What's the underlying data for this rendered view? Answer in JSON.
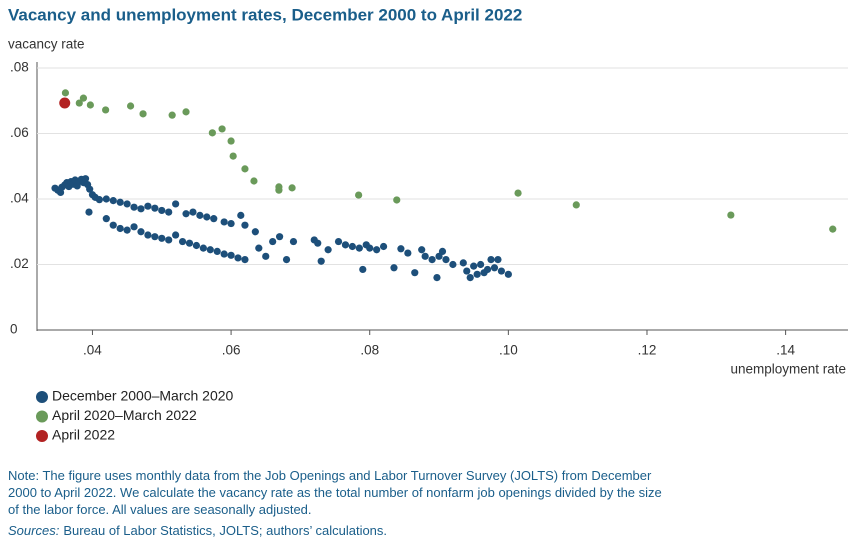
{
  "chart_data": {
    "type": "scatter",
    "title": "Vacancy and unemployment rates, December 2000 to April 2022",
    "y_label": "vacancy rate",
    "x_label": "unemployment rate",
    "xlim": [
      0.032,
      0.149
    ],
    "ylim": [
      0,
      0.08
    ],
    "xticks": [
      {
        "value": 0.04,
        "label": ".04"
      },
      {
        "value": 0.06,
        "label": ".06"
      },
      {
        "value": 0.08,
        "label": ".08"
      },
      {
        "value": 0.1,
        "label": ".10"
      },
      {
        "value": 0.12,
        "label": ".12"
      },
      {
        "value": 0.14,
        "label": ".14"
      }
    ],
    "yticks": [
      0,
      {
        "value": 0.02,
        "label": ".02"
      },
      {
        "value": 0.04,
        "label": ".04"
      },
      {
        "value": 0.06,
        "label": ".06"
      },
      {
        "value": 0.08,
        "label": ".08"
      }
    ],
    "grid": true,
    "series": [
      {
        "name": "December 2000–March 2020",
        "color": "#1d4f7a",
        "x": [
          0.0346,
          0.035,
          0.0354,
          0.0356,
          0.036,
          0.0363,
          0.0366,
          0.0369,
          0.0372,
          0.0375,
          0.0378,
          0.0381,
          0.0384,
          0.0387,
          0.039,
          0.0393,
          0.0396,
          0.04,
          0.0404,
          0.041,
          0.0395,
          0.042,
          0.043,
          0.044,
          0.045,
          0.046,
          0.047,
          0.048,
          0.049,
          0.05,
          0.051,
          0.052,
          0.0535,
          0.0545,
          0.0555,
          0.0565,
          0.0575,
          0.059,
          0.06,
          0.0614,
          0.062,
          0.0635,
          0.042,
          0.043,
          0.044,
          0.045,
          0.046,
          0.047,
          0.048,
          0.049,
          0.05,
          0.051,
          0.052,
          0.053,
          0.054,
          0.055,
          0.056,
          0.057,
          0.058,
          0.059,
          0.06,
          0.061,
          0.062,
          0.064,
          0.065,
          0.066,
          0.067,
          0.068,
          0.069,
          0.072,
          0.0725,
          0.073,
          0.074,
          0.0755,
          0.0765,
          0.0775,
          0.0785,
          0.0795,
          0.08,
          0.081,
          0.082,
          0.0835,
          0.079,
          0.0845,
          0.0855,
          0.0865,
          0.0875,
          0.088,
          0.089,
          0.0897,
          0.09,
          0.0905,
          0.091,
          0.092,
          0.0935,
          0.094,
          0.0945,
          0.095,
          0.0955,
          0.096,
          0.0965,
          0.097,
          0.0975,
          0.098,
          0.0985,
          0.099,
          0.1
        ],
        "values": [
          0.0433,
          0.0427,
          0.042,
          0.0436,
          0.0443,
          0.045,
          0.0438,
          0.0453,
          0.0445,
          0.0458,
          0.044,
          0.0455,
          0.046,
          0.045,
          0.0462,
          0.0444,
          0.043,
          0.0413,
          0.0405,
          0.0398,
          0.036,
          0.04,
          0.0395,
          0.039,
          0.0385,
          0.0375,
          0.037,
          0.0378,
          0.0372,
          0.0365,
          0.036,
          0.0385,
          0.0355,
          0.036,
          0.035,
          0.0345,
          0.034,
          0.033,
          0.0325,
          0.035,
          0.032,
          0.03,
          0.034,
          0.032,
          0.031,
          0.0305,
          0.0315,
          0.03,
          0.029,
          0.0285,
          0.028,
          0.0275,
          0.029,
          0.027,
          0.0265,
          0.0258,
          0.025,
          0.0245,
          0.024,
          0.0232,
          0.0228,
          0.022,
          0.0215,
          0.025,
          0.0225,
          0.027,
          0.0285,
          0.0215,
          0.027,
          0.0275,
          0.0265,
          0.021,
          0.0245,
          0.027,
          0.026,
          0.0255,
          0.025,
          0.026,
          0.025,
          0.0245,
          0.0255,
          0.019,
          0.0185,
          0.0248,
          0.0235,
          0.0175,
          0.0245,
          0.0225,
          0.0215,
          0.016,
          0.0225,
          0.024,
          0.0215,
          0.02,
          0.0205,
          0.018,
          0.016,
          0.0195,
          0.017,
          0.02,
          0.0175,
          0.0185,
          0.0215,
          0.019,
          0.0215,
          0.018,
          0.017
        ]
      },
      {
        "name": "April 2020–March 2022",
        "color": "#6a9a5a",
        "x": [
          0.0361,
          0.0381,
          0.0387,
          0.0397,
          0.0419,
          0.0455,
          0.0473,
          0.0515,
          0.0535,
          0.0573,
          0.0587,
          0.06,
          0.0603,
          0.062,
          0.0633,
          0.0669,
          0.0669,
          0.0688,
          0.0784,
          0.0839,
          0.1014,
          0.1098,
          0.1321,
          0.1468
        ],
        "values": [
          0.0724,
          0.0693,
          0.0708,
          0.0687,
          0.0672,
          0.0684,
          0.066,
          0.0656,
          0.0666,
          0.0602,
          0.0614,
          0.0577,
          0.0531,
          0.0492,
          0.0455,
          0.0437,
          0.0427,
          0.0434,
          0.0412,
          0.0397,
          0.0418,
          0.0382,
          0.0351,
          0.0308
        ]
      },
      {
        "name": "April 2022",
        "color": "#b22222",
        "x": [
          0.036
        ],
        "values": [
          0.0693
        ]
      }
    ]
  },
  "note": "Note: The figure uses monthly data from the Job Openings and Labor Turnover Survey (JOLTS) from December 2000 to April 2022. We calculate the vacancy rate as the total number of nonfarm job openings divided by the size of the labor force. All values are seasonally adjusted.",
  "sources_label": "Sources:",
  "sources": "Bureau of Labor Statistics, JOLTS; authors’ calculations."
}
